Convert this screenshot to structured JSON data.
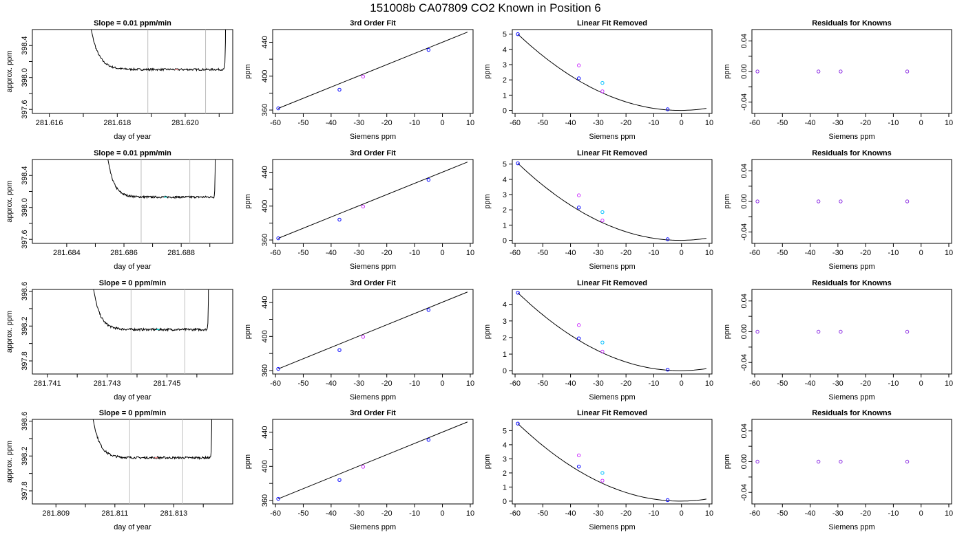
{
  "figure": {
    "title": "151008b     CA07809   CO2 Known in Position  6"
  },
  "colors": {
    "line": "#000000",
    "ref_line": "#bebebe",
    "blue": "#0000ff",
    "magenta": "#cc33ff",
    "cyan": "#00bfff",
    "purple": "#8a2be2",
    "pink": "#ff9999",
    "cyan2": "#00cfcf"
  },
  "chart_data": [
    {
      "type": "line",
      "title": "Slope =  0.01  ppm/min",
      "xlabel": "day of year",
      "ylabel": "approx. ppm",
      "xlim": [
        281.6155,
        281.6214
      ],
      "ylim": [
        397.55,
        398.6
      ],
      "xticks": [
        281.616,
        281.617,
        281.618,
        281.619,
        281.62,
        281.621
      ],
      "xticklabels": [
        "281.616",
        "",
        "281.618",
        "",
        "281.620",
        ""
      ],
      "yticks": [
        397.6,
        397.8,
        398.0,
        398.2,
        398.4
      ],
      "yticklabels": [
        "397.6",
        "",
        "398.0",
        "",
        "398.4"
      ],
      "vlines": [
        281.6189,
        281.6206
      ],
      "rise_left": 281.6171,
      "rise_right": 281.6212,
      "baseline": 398.1,
      "segment_color": "#ff9999"
    },
    {
      "type": "scatter",
      "title": "3rd Order Fit",
      "xlabel": "Siemens ppm",
      "ylabel": "ppm",
      "xlim": [
        -61,
        11
      ],
      "ylim": [
        356,
        455
      ],
      "xticks": [
        -60,
        -50,
        -40,
        -30,
        -20,
        -10,
        0,
        10
      ],
      "xticklabels": [
        "-60",
        "-50",
        "-40",
        "-30",
        "-20",
        "-10",
        "0",
        "10"
      ],
      "yticks": [
        360,
        380,
        400,
        420,
        440
      ],
      "yticklabels": [
        "360",
        "",
        "400",
        "",
        "440"
      ],
      "points": [
        {
          "x": -59,
          "y": 362,
          "color": "blue"
        },
        {
          "x": -37,
          "y": 384,
          "color": "blue"
        },
        {
          "x": -28.5,
          "y": 399.5,
          "color": "magenta"
        },
        {
          "x": -5,
          "y": 431,
          "color": "blue"
        }
      ],
      "fit": {
        "x0": -59,
        "x1": 9,
        "y0": 362,
        "y1": 452
      }
    },
    {
      "type": "scatter",
      "title": "Linear Fit Removed",
      "xlabel": "Siemens ppm",
      "ylabel": "ppm",
      "xlim": [
        -61,
        11
      ],
      "ylim": [
        -0.2,
        5.3
      ],
      "xticks": [
        -60,
        -50,
        -40,
        -30,
        -20,
        -10,
        0,
        10
      ],
      "xticklabels": [
        "-60",
        "-50",
        "-40",
        "-30",
        "-20",
        "-10",
        "0",
        "10"
      ],
      "yticks": [
        0,
        1,
        2,
        3,
        4,
        5
      ],
      "yticklabels": [
        "0",
        "1",
        "2",
        "3",
        "4",
        "5"
      ],
      "points": [
        {
          "x": -59,
          "y": 5.0,
          "color": "blue"
        },
        {
          "x": -37,
          "y": 2.1,
          "color": "blue"
        },
        {
          "x": -37,
          "y": 2.95,
          "color": "magenta"
        },
        {
          "x": -28.5,
          "y": 1.8,
          "color": "cyan"
        },
        {
          "x": -28.5,
          "y": 1.25,
          "color": "magenta"
        },
        {
          "x": -5,
          "y": 0.07,
          "color": "blue"
        }
      ],
      "curve": {
        "vertex_x": -0.5,
        "vertex_y": 0.0,
        "start_x": -59,
        "start_y": 5.0,
        "end_x": 9
      }
    },
    {
      "type": "scatter",
      "title": "Residuals for Knowns",
      "xlabel": "Siemens ppm",
      "ylabel": "ppm",
      "xlim": [
        -61,
        11
      ],
      "ylim": [
        -0.055,
        0.055
      ],
      "xticks": [
        -60,
        -50,
        -40,
        -30,
        -20,
        -10,
        0,
        10
      ],
      "xticklabels": [
        "-60",
        "-50",
        "-40",
        "-30",
        "-20",
        "-10",
        "0",
        "10"
      ],
      "yticks": [
        -0.04,
        -0.02,
        0,
        0.02,
        0.04
      ],
      "yticklabels": [
        "-0.04",
        "",
        "0.00",
        "",
        "0.04"
      ],
      "points": [
        {
          "x": -59,
          "y": 0,
          "color": "purple"
        },
        {
          "x": -37,
          "y": 0,
          "color": "purple"
        },
        {
          "x": -29,
          "y": 0,
          "color": "purple"
        },
        {
          "x": -5,
          "y": 0,
          "color": "purple"
        }
      ]
    },
    {
      "type": "line",
      "title": "Slope =  0.01  ppm/min",
      "xlabel": "day of year",
      "ylabel": "approx. ppm",
      "xlim": [
        281.6828,
        281.6898
      ],
      "ylim": [
        397.55,
        398.6
      ],
      "xticks": [
        281.684,
        281.685,
        281.686,
        281.687,
        281.688,
        281.689
      ],
      "xticklabels": [
        "281.684",
        "",
        "281.686",
        "",
        "281.688",
        ""
      ],
      "yticks": [
        397.6,
        397.8,
        398.0,
        398.2,
        398.4
      ],
      "yticklabels": [
        "397.6",
        "",
        "398.0",
        "",
        "398.4"
      ],
      "vlines": [
        281.6866,
        281.6883
      ],
      "rise_left": 281.6853,
      "rise_right": 281.6892,
      "baseline": 398.13,
      "segment_color": "#00cfcf"
    },
    {
      "type": "scatter",
      "title": "3rd Order Fit",
      "xlabel": "Siemens ppm",
      "ylabel": "ppm",
      "xlim": [
        -61,
        11
      ],
      "ylim": [
        356,
        455
      ],
      "xticks": [
        -60,
        -50,
        -40,
        -30,
        -20,
        -10,
        0,
        10
      ],
      "xticklabels": [
        "-60",
        "-50",
        "-40",
        "-30",
        "-20",
        "-10",
        "0",
        "10"
      ],
      "yticks": [
        360,
        380,
        400,
        420,
        440
      ],
      "yticklabels": [
        "360",
        "",
        "400",
        "",
        "440"
      ],
      "points": [
        {
          "x": -59,
          "y": 362,
          "color": "blue"
        },
        {
          "x": -37,
          "y": 384,
          "color": "blue"
        },
        {
          "x": -28.5,
          "y": 399.5,
          "color": "magenta"
        },
        {
          "x": -5,
          "y": 431,
          "color": "blue"
        }
      ],
      "fit": {
        "x0": -59,
        "x1": 9,
        "y0": 362,
        "y1": 452
      }
    },
    {
      "type": "scatter",
      "title": "Linear Fit Removed",
      "xlabel": "Siemens ppm",
      "ylabel": "ppm",
      "xlim": [
        -61,
        11
      ],
      "ylim": [
        -0.2,
        5.3
      ],
      "xticks": [
        -60,
        -50,
        -40,
        -30,
        -20,
        -10,
        0,
        10
      ],
      "xticklabels": [
        "-60",
        "-50",
        "-40",
        "-30",
        "-20",
        "-10",
        "0",
        "10"
      ],
      "yticks": [
        0,
        1,
        2,
        3,
        4,
        5
      ],
      "yticklabels": [
        "0",
        "1",
        "2",
        "3",
        "4",
        "5"
      ],
      "points": [
        {
          "x": -59,
          "y": 5.05,
          "color": "blue"
        },
        {
          "x": -37,
          "y": 2.15,
          "color": "blue"
        },
        {
          "x": -37,
          "y": 2.95,
          "color": "magenta"
        },
        {
          "x": -28.5,
          "y": 1.85,
          "color": "cyan"
        },
        {
          "x": -28.5,
          "y": 1.3,
          "color": "magenta"
        },
        {
          "x": -5,
          "y": 0.07,
          "color": "blue"
        }
      ],
      "curve": {
        "vertex_x": -0.5,
        "vertex_y": 0.0,
        "start_x": -59,
        "start_y": 5.05,
        "end_x": 9
      }
    },
    {
      "type": "scatter",
      "title": "Residuals for Knowns",
      "xlabel": "Siemens ppm",
      "ylabel": "ppm",
      "xlim": [
        -61,
        11
      ],
      "ylim": [
        -0.055,
        0.055
      ],
      "xticks": [
        -60,
        -50,
        -40,
        -30,
        -20,
        -10,
        0,
        10
      ],
      "xticklabels": [
        "-60",
        "-50",
        "-40",
        "-30",
        "-20",
        "-10",
        "0",
        "10"
      ],
      "yticks": [
        -0.04,
        -0.02,
        0,
        0.02,
        0.04
      ],
      "yticklabels": [
        "-0.04",
        "",
        "0.00",
        "",
        "0.04"
      ],
      "points": [
        {
          "x": -59,
          "y": 0,
          "color": "purple"
        },
        {
          "x": -37,
          "y": 0,
          "color": "purple"
        },
        {
          "x": -29,
          "y": 0,
          "color": "purple"
        },
        {
          "x": -5,
          "y": 0,
          "color": "purple"
        }
      ]
    },
    {
      "type": "line",
      "title": "Slope =  0  ppm/min",
      "xlabel": "day of year",
      "ylabel": "approx. ppm",
      "xlim": [
        281.7405,
        281.7472
      ],
      "ylim": [
        397.65,
        398.62
      ],
      "xticks": [
        281.741,
        281.742,
        281.743,
        281.744,
        281.745,
        281.746
      ],
      "xticklabels": [
        "281.741",
        "",
        "281.743",
        "",
        "281.745",
        ""
      ],
      "yticks": [
        397.8,
        398.0,
        398.2,
        398.4,
        398.6
      ],
      "yticklabels": [
        "397.8",
        "",
        "398.2",
        "",
        "398.6"
      ],
      "vlines": [
        281.7438,
        281.7456
      ],
      "rise_left": 281.7424,
      "rise_right": 281.7464,
      "baseline": 398.16,
      "segment_color": "#00cfcf"
    },
    {
      "type": "scatter",
      "title": "3rd Order Fit",
      "xlabel": "Siemens ppm",
      "ylabel": "ppm",
      "xlim": [
        -61,
        11
      ],
      "ylim": [
        356,
        455
      ],
      "xticks": [
        -60,
        -50,
        -40,
        -30,
        -20,
        -10,
        0,
        10
      ],
      "xticklabels": [
        "-60",
        "-50",
        "-40",
        "-30",
        "-20",
        "-10",
        "0",
        "10"
      ],
      "yticks": [
        360,
        380,
        400,
        420,
        440
      ],
      "yticklabels": [
        "360",
        "",
        "400",
        "",
        "440"
      ],
      "points": [
        {
          "x": -59,
          "y": 362,
          "color": "blue"
        },
        {
          "x": -37,
          "y": 384,
          "color": "blue"
        },
        {
          "x": -28.5,
          "y": 399.5,
          "color": "magenta"
        },
        {
          "x": -5,
          "y": 431,
          "color": "blue"
        }
      ],
      "fit": {
        "x0": -59,
        "x1": 9,
        "y0": 362,
        "y1": 452
      }
    },
    {
      "type": "scatter",
      "title": "Linear Fit Removed",
      "xlabel": "Siemens ppm",
      "ylabel": "ppm",
      "xlim": [
        -61,
        11
      ],
      "ylim": [
        -0.2,
        4.9
      ],
      "xticks": [
        -60,
        -50,
        -40,
        -30,
        -20,
        -10,
        0,
        10
      ],
      "xticklabels": [
        "-60",
        "-50",
        "-40",
        "-30",
        "-20",
        "-10",
        "0",
        "10"
      ],
      "yticks": [
        0,
        1,
        2,
        3,
        4
      ],
      "yticklabels": [
        "0",
        "1",
        "2",
        "3",
        "4"
      ],
      "points": [
        {
          "x": -59,
          "y": 4.7,
          "color": "blue"
        },
        {
          "x": -37,
          "y": 1.95,
          "color": "blue"
        },
        {
          "x": -37,
          "y": 2.75,
          "color": "magenta"
        },
        {
          "x": -28.5,
          "y": 1.7,
          "color": "cyan"
        },
        {
          "x": -28.5,
          "y": 1.15,
          "color": "magenta"
        },
        {
          "x": -5,
          "y": 0.06,
          "color": "blue"
        }
      ],
      "curve": {
        "vertex_x": -0.5,
        "vertex_y": 0.0,
        "start_x": -59,
        "start_y": 4.7,
        "end_x": 9
      }
    },
    {
      "type": "scatter",
      "title": "Residuals for Knowns",
      "xlabel": "Siemens ppm",
      "ylabel": "ppm",
      "xlim": [
        -61,
        11
      ],
      "ylim": [
        -0.055,
        0.055
      ],
      "xticks": [
        -60,
        -50,
        -40,
        -30,
        -20,
        -10,
        0,
        10
      ],
      "xticklabels": [
        "-60",
        "-50",
        "-40",
        "-30",
        "-20",
        "-10",
        "0",
        "10"
      ],
      "yticks": [
        -0.04,
        -0.02,
        0,
        0.02,
        0.04
      ],
      "yticklabels": [
        "-0.04",
        "",
        "0.00",
        "",
        "0.04"
      ],
      "points": [
        {
          "x": -59,
          "y": 0,
          "color": "purple"
        },
        {
          "x": -37,
          "y": 0,
          "color": "purple"
        },
        {
          "x": -29,
          "y": 0,
          "color": "purple"
        },
        {
          "x": -5,
          "y": 0,
          "color": "purple"
        }
      ]
    },
    {
      "type": "line",
      "title": "Slope =  0  ppm/min",
      "xlabel": "day of year",
      "ylabel": "approx. ppm",
      "xlim": [
        281.8082,
        281.815
      ],
      "ylim": [
        397.65,
        398.62
      ],
      "xticks": [
        281.809,
        281.81,
        281.811,
        281.812,
        281.813,
        281.814
      ],
      "xticklabels": [
        "281.809",
        "",
        "281.811",
        "",
        "281.813",
        ""
      ],
      "yticks": [
        397.8,
        398.0,
        398.2,
        398.4,
        398.6
      ],
      "yticklabels": [
        "397.8",
        "",
        "398.2",
        "",
        "398.6"
      ],
      "vlines": [
        281.8115,
        281.8133
      ],
      "rise_left": 281.8101,
      "rise_right": 281.8143,
      "baseline": 398.18,
      "segment_color": "#ff9999"
    },
    {
      "type": "scatter",
      "title": "3rd Order Fit",
      "xlabel": "Siemens ppm",
      "ylabel": "ppm",
      "xlim": [
        -61,
        11
      ],
      "ylim": [
        356,
        455
      ],
      "xticks": [
        -60,
        -50,
        -40,
        -30,
        -20,
        -10,
        0,
        10
      ],
      "xticklabels": [
        "-60",
        "-50",
        "-40",
        "-30",
        "-20",
        "-10",
        "0",
        "10"
      ],
      "yticks": [
        360,
        380,
        400,
        420,
        440
      ],
      "yticklabels": [
        "360",
        "",
        "400",
        "",
        "440"
      ],
      "points": [
        {
          "x": -59,
          "y": 362,
          "color": "blue"
        },
        {
          "x": -37,
          "y": 384,
          "color": "blue"
        },
        {
          "x": -28.5,
          "y": 399.5,
          "color": "magenta"
        },
        {
          "x": -5,
          "y": 431,
          "color": "blue"
        }
      ],
      "fit": {
        "x0": -59,
        "x1": 9,
        "y0": 362,
        "y1": 452
      }
    },
    {
      "type": "scatter",
      "title": "Linear Fit Removed",
      "xlabel": "Siemens ppm",
      "ylabel": "ppm",
      "xlim": [
        -61,
        11
      ],
      "ylim": [
        -0.2,
        5.8
      ],
      "xticks": [
        -60,
        -50,
        -40,
        -30,
        -20,
        -10,
        0,
        10
      ],
      "xticklabels": [
        "-60",
        "-50",
        "-40",
        "-30",
        "-20",
        "-10",
        "0",
        "10"
      ],
      "yticks": [
        0,
        1,
        2,
        3,
        4,
        5
      ],
      "yticklabels": [
        "0",
        "1",
        "2",
        "3",
        "4",
        "5"
      ],
      "points": [
        {
          "x": -59,
          "y": 5.5,
          "color": "blue"
        },
        {
          "x": -37,
          "y": 2.45,
          "color": "blue"
        },
        {
          "x": -37,
          "y": 3.25,
          "color": "magenta"
        },
        {
          "x": -28.5,
          "y": 2.0,
          "color": "cyan"
        },
        {
          "x": -28.5,
          "y": 1.45,
          "color": "magenta"
        },
        {
          "x": -5,
          "y": 0.07,
          "color": "blue"
        }
      ],
      "curve": {
        "vertex_x": -0.5,
        "vertex_y": 0.0,
        "start_x": -59,
        "start_y": 5.5,
        "end_x": 9
      }
    },
    {
      "type": "scatter",
      "title": "Residuals for Knowns",
      "xlabel": "Siemens ppm",
      "ylabel": "ppm",
      "xlim": [
        -61,
        11
      ],
      "ylim": [
        -0.055,
        0.055
      ],
      "xticks": [
        -60,
        -50,
        -40,
        -30,
        -20,
        -10,
        0,
        10
      ],
      "xticklabels": [
        "-60",
        "-50",
        "-40",
        "-30",
        "-20",
        "-10",
        "0",
        "10"
      ],
      "yticks": [
        -0.04,
        -0.02,
        0,
        0.02,
        0.04
      ],
      "yticklabels": [
        "-0.04",
        "",
        "0.00",
        "",
        "0.04"
      ],
      "points": [
        {
          "x": -59,
          "y": 0,
          "color": "purple"
        },
        {
          "x": -37,
          "y": 0,
          "color": "purple"
        },
        {
          "x": -29,
          "y": 0,
          "color": "purple"
        },
        {
          "x": -5,
          "y": 0,
          "color": "purple"
        }
      ]
    }
  ]
}
